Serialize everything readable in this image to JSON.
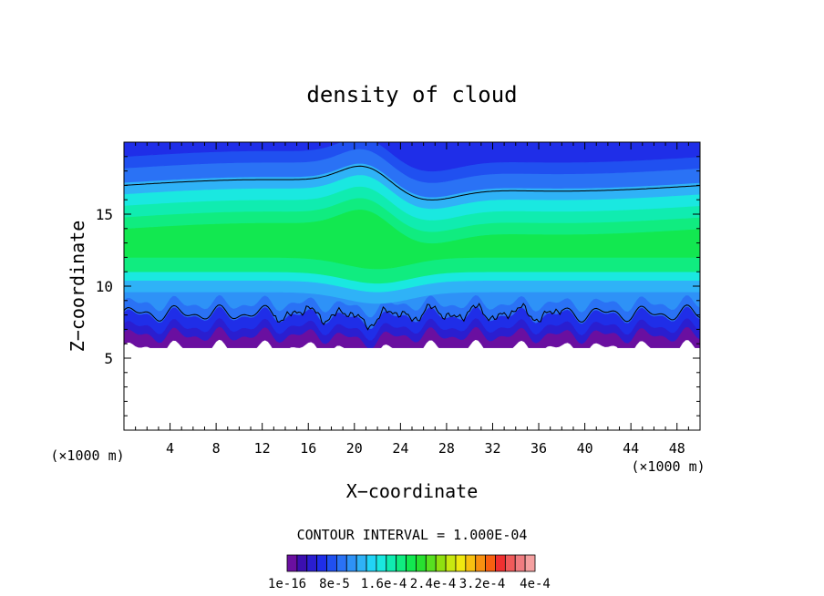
{
  "chart_data": {
    "type": "heatmap",
    "title": "density of cloud",
    "xlabel": "X−coordinate",
    "ylabel": "Z−coordinate",
    "x_unit_left": "(×1000 m)",
    "x_unit_right": "(×1000 m)",
    "xlim": [
      0,
      50
    ],
    "ylim": [
      0,
      20
    ],
    "x_ticks": [
      4,
      8,
      12,
      16,
      20,
      24,
      28,
      32,
      36,
      40,
      44,
      48
    ],
    "x_tick_labels": [
      "4",
      "8",
      "12",
      "16",
      "20",
      "24",
      "28",
      "32",
      "36",
      "40",
      "44",
      "48"
    ],
    "y_ticks": [
      5,
      10,
      15
    ],
    "y_tick_labels": [
      "5",
      "10",
      "15"
    ],
    "contour_interval_text": "CONTOUR INTERVAL = 1.000E-04",
    "colorbar": {
      "colors": [
        "#6a0fa0",
        "#3b0fb0",
        "#2a1ed0",
        "#1f2ee8",
        "#2050f0",
        "#2a72f5",
        "#2e92f7",
        "#2fb2f7",
        "#22d4f7",
        "#1ae8e0",
        "#10ecb0",
        "#10ec80",
        "#12e850",
        "#28e030",
        "#58e020",
        "#90e010",
        "#c8e810",
        "#f0e810",
        "#f8c010",
        "#f89010",
        "#f86010",
        "#f03030",
        "#f05a5a",
        "#f07c80",
        "#f5a0a0"
      ],
      "tick_labels": [
        "1e-16",
        "8e-5",
        "1.6e-4",
        "2.4e-4",
        "3.2e-4",
        "4e-4"
      ]
    },
    "field": {
      "description_levels": "cloud density bands by height",
      "cloud_base_km": 5.7,
      "bands": [
        {
          "z": [
            5.7,
            6.6
          ],
          "level": 0
        },
        {
          "z": [
            6.6,
            7.2
          ],
          "level": 2
        },
        {
          "z": [
            7.2,
            8.0
          ],
          "level": 3
        },
        {
          "z": [
            8.0,
            8.8
          ],
          "level": 5
        },
        {
          "z": [
            8.8,
            9.6
          ],
          "level": 6
        },
        {
          "z": [
            9.6,
            10.4
          ],
          "level": 7
        },
        {
          "z": [
            10.4,
            11.0
          ],
          "level": 9
        },
        {
          "z": [
            11.0,
            12.0
          ],
          "level": 11
        },
        {
          "z": [
            12.0,
            14.0
          ],
          "level": 12
        },
        {
          "z": [
            14.0,
            14.8
          ],
          "level": 11
        },
        {
          "z": [
            14.8,
            15.6
          ],
          "level": 10
        },
        {
          "z": [
            15.6,
            16.4
          ],
          "level": 9
        },
        {
          "z": [
            16.4,
            17.2
          ],
          "level": 7
        },
        {
          "z": [
            17.2,
            18.2
          ],
          "level": 5
        },
        {
          "z": [
            18.2,
            19.0
          ],
          "level": 4
        },
        {
          "z": [
            19.0,
            20.0
          ],
          "level": 3
        }
      ]
    }
  }
}
